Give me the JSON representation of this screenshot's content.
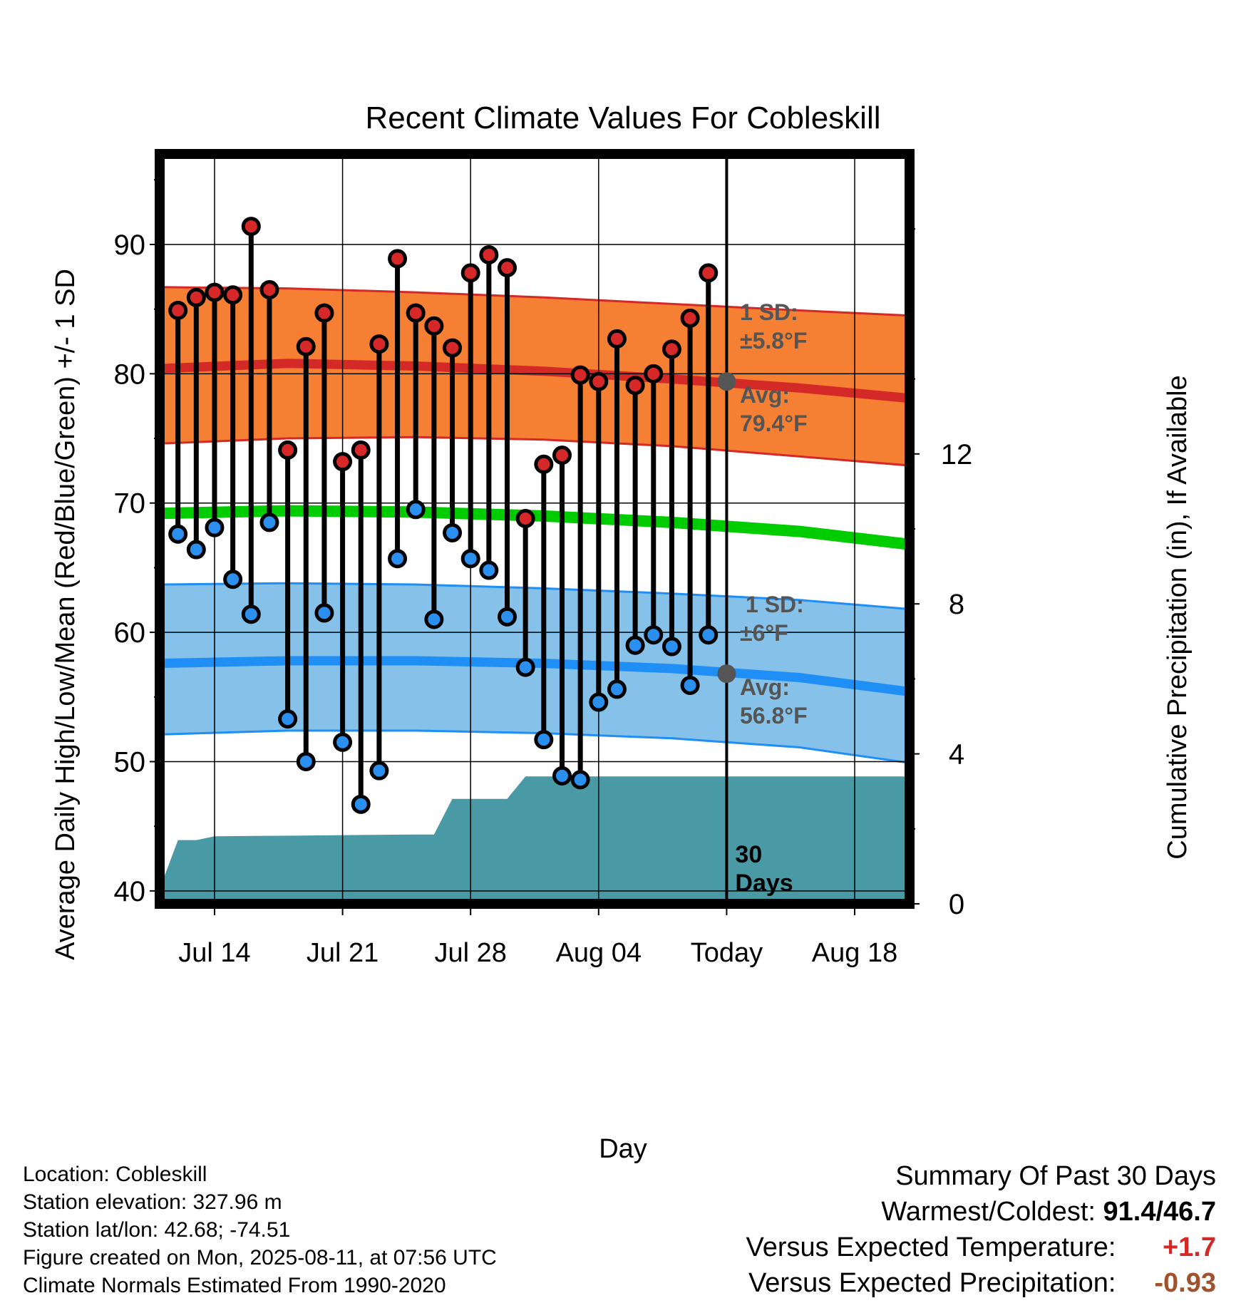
{
  "chart_data": {
    "type": "line",
    "title": "Recent Climate Values For Cobleskill",
    "xlabel": "Day",
    "ylabel_left": "Average Daily High/Low/Mean (Red/Blue/Green) +/- 1 SD",
    "ylabel_right": "Cumulative Precipitation (in), If Available",
    "x_range": [
      "2025-07-11",
      "2025-08-21"
    ],
    "ylim_left": [
      39,
      97
    ],
    "ylim_right": [
      0,
      20
    ],
    "x_ticks": [
      {
        "date": "2025-07-14",
        "label": "Jul 14"
      },
      {
        "date": "2025-07-21",
        "label": "Jul 21"
      },
      {
        "date": "2025-07-28",
        "label": "Jul 28"
      },
      {
        "date": "2025-08-04",
        "label": "Aug 04"
      },
      {
        "date": "2025-08-11",
        "label": "Today"
      },
      {
        "date": "2025-08-18",
        "label": "Aug 18"
      }
    ],
    "y_ticks_left": [
      40,
      50,
      60,
      70,
      80,
      90
    ],
    "y_ticks_right": [
      0,
      4,
      8,
      12
    ],
    "grid": true,
    "today": "2025-08-11",
    "window_label_line1": "30",
    "window_label_line2": "Days",
    "daily": {
      "dates": [
        "2025-07-12",
        "2025-07-13",
        "2025-07-14",
        "2025-07-15",
        "2025-07-16",
        "2025-07-17",
        "2025-07-18",
        "2025-07-19",
        "2025-07-20",
        "2025-07-21",
        "2025-07-22",
        "2025-07-23",
        "2025-07-24",
        "2025-07-25",
        "2025-07-26",
        "2025-07-27",
        "2025-07-28",
        "2025-07-29",
        "2025-07-30",
        "2025-07-31",
        "2025-08-01",
        "2025-08-02",
        "2025-08-03",
        "2025-08-04",
        "2025-08-05",
        "2025-08-06",
        "2025-08-07",
        "2025-08-08",
        "2025-08-09",
        "2025-08-10"
      ],
      "high": [
        84.9,
        85.9,
        86.3,
        86.1,
        91.4,
        86.5,
        74.1,
        82.1,
        84.7,
        73.2,
        74.1,
        82.3,
        88.9,
        84.7,
        83.7,
        82.0,
        87.8,
        89.2,
        88.2,
        68.8,
        73.0,
        73.7,
        79.9,
        79.4,
        82.7,
        79.1,
        80.0,
        81.9,
        84.3,
        87.8
      ],
      "low": [
        67.6,
        66.4,
        68.1,
        64.1,
        61.4,
        68.5,
        53.3,
        50.0,
        61.5,
        51.5,
        46.7,
        49.3,
        65.7,
        69.5,
        61.0,
        67.7,
        65.7,
        64.8,
        61.2,
        57.3,
        51.7,
        48.9,
        48.6,
        54.6,
        55.6,
        59.0,
        59.8,
        58.9,
        55.9,
        59.8
      ]
    },
    "normals": {
      "dates": [
        "2025-07-11",
        "2025-07-18",
        "2025-07-25",
        "2025-08-01",
        "2025-08-08",
        "2025-08-15",
        "2025-08-21"
      ],
      "high_mean": [
        80.4,
        80.8,
        80.6,
        80.2,
        79.6,
        78.9,
        78.1
      ],
      "high_upper": [
        86.7,
        86.6,
        86.3,
        85.9,
        85.4,
        84.9,
        84.5
      ],
      "high_lower": [
        74.6,
        75.0,
        75.1,
        74.9,
        74.4,
        73.6,
        72.9
      ],
      "low_mean": [
        57.6,
        57.8,
        57.8,
        57.6,
        57.2,
        56.5,
        55.4
      ],
      "low_upper": [
        63.7,
        63.8,
        63.7,
        63.4,
        63.0,
        62.5,
        61.8
      ],
      "low_lower": [
        52.1,
        52.4,
        52.4,
        52.2,
        51.8,
        51.1,
        49.9
      ],
      "avg_mean": [
        69.2,
        69.4,
        69.3,
        69.0,
        68.5,
        67.8,
        66.8
      ]
    },
    "precip": {
      "dates": [
        "2025-07-11",
        "2025-07-12",
        "2025-07-13",
        "2025-07-14",
        "2025-07-25",
        "2025-07-26",
        "2025-07-27",
        "2025-07-30",
        "2025-07-31",
        "2025-08-21"
      ],
      "cumulative": [
        0.4,
        1.7,
        1.7,
        1.8,
        1.85,
        1.85,
        2.8,
        2.8,
        3.4,
        3.4
      ]
    },
    "annotations": {
      "high_sd_line1": "1 SD:",
      "high_sd_line2": "±5.8°F",
      "high_avg_line1": "Avg:",
      "high_avg_line2": "79.4°F",
      "low_sd_line1": "1 SD:",
      "low_sd_line2": "±6°F",
      "low_avg_line1": "Avg:",
      "low_avg_line2": "56.8°F",
      "high_avg_value": 79.4,
      "low_avg_value": 56.8
    },
    "colors": {
      "high_band": "#f57f33",
      "high_line": "#d42a27",
      "low_band": "#85c1e9",
      "low_line": "#1f8ff5",
      "mean_line": "#00cc00",
      "precip_fill": "#4a9aa5",
      "high_dot": "#d62828",
      "low_dot": "#2b8ff0",
      "annot_text": "#555555"
    }
  },
  "info": {
    "location": "Location: Cobleskill",
    "elevation": "Station elevation: 327.96 m",
    "latlon": "Station lat/lon: 42.68; -74.51",
    "created": "Figure created on Mon, 2025-08-11, at 07:56 UTC",
    "normals": "Climate Normals Estimated From 1990-2020"
  },
  "summary": {
    "title": "Summary Of Past 30 Days",
    "warm_cold_label": "Warmest/Coldest:",
    "warm_cold_value": "91.4/46.7",
    "temp_label": "Versus Expected Temperature:",
    "temp_value": "+1.7",
    "temp_color": "#d42a27",
    "precip_label": "Versus Expected Precipitation:",
    "precip_value": "-0.93",
    "precip_color": "#a0522d"
  }
}
